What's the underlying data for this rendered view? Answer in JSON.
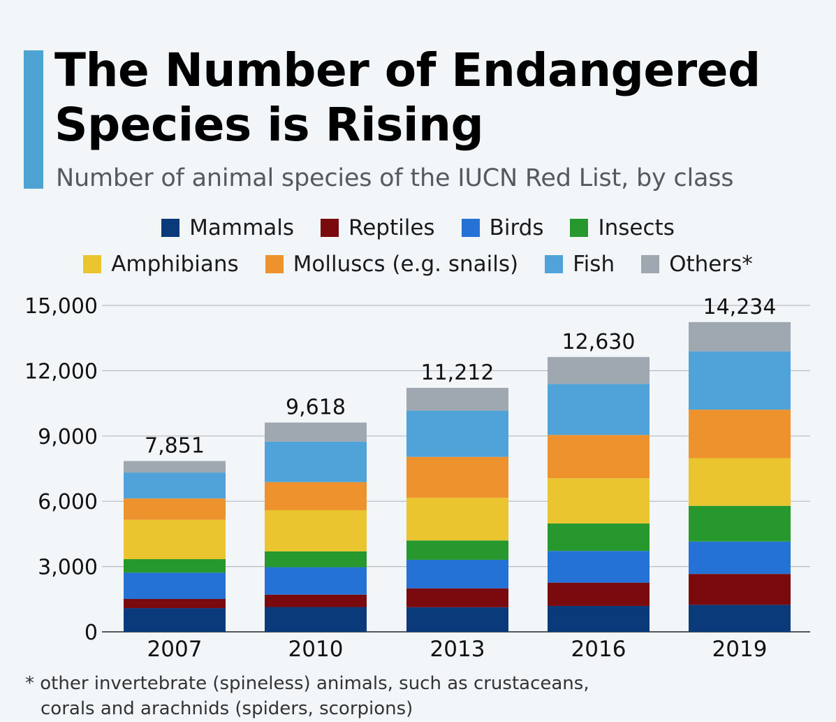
{
  "title": "The Number of Endangered Species is Rising",
  "subtitle": "Number of animal species of the IUCN Red List, by class",
  "legend": [
    {
      "label": "Mammals",
      "color": "#0b3a7a"
    },
    {
      "label": "Reptiles",
      "color": "#7a0a0e"
    },
    {
      "label": "Birds",
      "color": "#2472d6"
    },
    {
      "label": "Insects",
      "color": "#26982e"
    },
    {
      "label": "Amphibians",
      "color": "#ebc530"
    },
    {
      "label": "Molluscs (e.g. snails)",
      "color": "#ee922e"
    },
    {
      "label": "Fish",
      "color": "#4fa3d8"
    },
    {
      "label": "Others*",
      "color": "#9fa8b0"
    }
  ],
  "footnote": "* other invertebrate (spineless) animals, such as crustaceans, corals and arachnids (spiders, scorpions)",
  "chart_data": {
    "type": "bar",
    "stacked": true,
    "categories": [
      "2007",
      "2010",
      "2013",
      "2016",
      "2019"
    ],
    "ylim": [
      0,
      15000
    ],
    "yticks": [
      "0",
      "3,000",
      "6,000",
      "9,000",
      "12,000",
      "15,000"
    ],
    "grid": true,
    "legend_position": "top",
    "totals": [
      "7,851",
      "9,618",
      "11,212",
      "12,630",
      "14,234"
    ],
    "series": [
      {
        "name": "Mammals",
        "color": "#0b3a7a",
        "values": [
          1090,
          1140,
          1130,
          1190,
          1240
        ]
      },
      {
        "name": "Reptiles",
        "color": "#7a0a0e",
        "values": [
          420,
          570,
          870,
          1070,
          1420
        ]
      },
      {
        "name": "Birds",
        "color": "#2472d6",
        "values": [
          1210,
          1260,
          1310,
          1460,
          1490
        ]
      },
      {
        "name": "Insects",
        "color": "#26982e",
        "values": [
          620,
          730,
          890,
          1260,
          1640
        ]
      },
      {
        "name": "Amphibians",
        "color": "#ebc530",
        "values": [
          1810,
          1890,
          1960,
          2080,
          2190
        ]
      },
      {
        "name": "Molluscs (e.g. snails)",
        "color": "#ee922e",
        "values": [
          980,
          1290,
          1880,
          1990,
          2230
        ]
      },
      {
        "name": "Fish",
        "color": "#4fa3d8",
        "values": [
          1190,
          1860,
          2130,
          2340,
          2680
        ]
      },
      {
        "name": "Others*",
        "color": "#9fa8b0",
        "values": [
          531,
          878,
          1042,
          1240,
          1344
        ]
      }
    ]
  }
}
